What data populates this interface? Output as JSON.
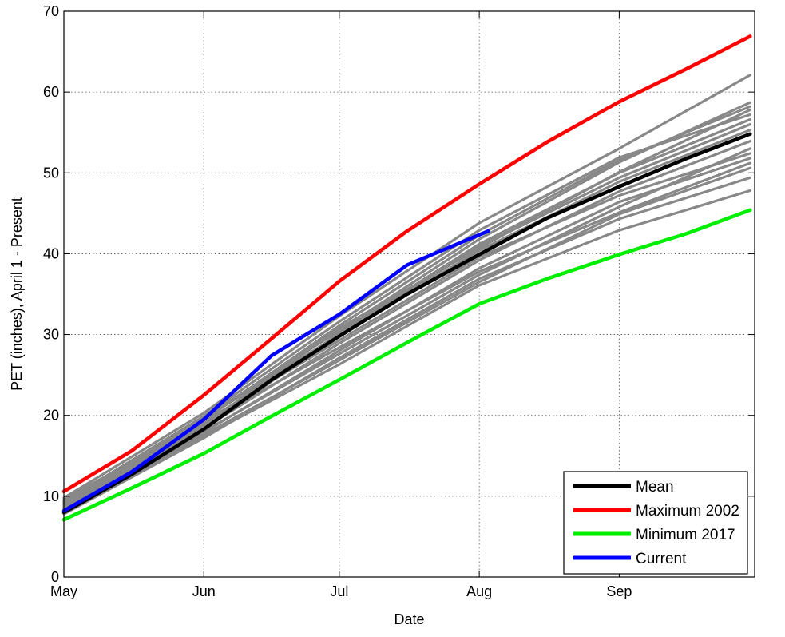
{
  "chart_data": {
    "type": "line",
    "title": "",
    "xlabel": "Date",
    "ylabel": "PET (inches), April 1 - Present",
    "xlim": [
      "2023-05-01",
      "2023-10-01"
    ],
    "ylim": [
      0,
      70
    ],
    "grid": true,
    "legend_position": "bottom-right",
    "x_ticks": [
      {
        "date": "2023-05-01",
        "label": "May"
      },
      {
        "date": "2023-06-01",
        "label": "Jun"
      },
      {
        "date": "2023-07-01",
        "label": "Jul"
      },
      {
        "date": "2023-08-01",
        "label": "Aug"
      },
      {
        "date": "2023-09-01",
        "label": "Sep"
      }
    ],
    "y_ticks": [
      0,
      10,
      20,
      30,
      40,
      50,
      60,
      70
    ],
    "series": [
      {
        "name": "Mean",
        "color": "#000000",
        "x": [
          "2023-05-01",
          "2023-05-16",
          "2023-06-01",
          "2023-06-16",
          "2023-07-01",
          "2023-07-16",
          "2023-08-01",
          "2023-08-16",
          "2023-09-01",
          "2023-09-16",
          "2023-09-30"
        ],
        "y": [
          8.0,
          12.7,
          18.3,
          24.4,
          29.8,
          35.0,
          39.9,
          44.4,
          48.3,
          51.8,
          54.8
        ]
      },
      {
        "name": "Maximum 2002",
        "color": "#ff0000",
        "x": [
          "2023-05-01",
          "2023-05-16",
          "2023-06-01",
          "2023-06-16",
          "2023-07-01",
          "2023-07-16",
          "2023-08-01",
          "2023-08-16",
          "2023-09-01",
          "2023-09-16",
          "2023-09-30"
        ],
        "y": [
          10.6,
          15.6,
          22.5,
          29.5,
          36.6,
          42.8,
          48.6,
          53.8,
          58.8,
          62.9,
          66.9
        ]
      },
      {
        "name": "Minimum 2017",
        "color": "#00ee00",
        "x": [
          "2023-05-01",
          "2023-05-16",
          "2023-06-01",
          "2023-06-16",
          "2023-07-01",
          "2023-07-16",
          "2023-08-01",
          "2023-08-16",
          "2023-09-01",
          "2023-09-16",
          "2023-09-30"
        ],
        "y": [
          7.1,
          11.0,
          15.3,
          19.9,
          24.4,
          29.0,
          33.8,
          36.9,
          39.9,
          42.5,
          45.4
        ]
      },
      {
        "name": "Current",
        "color": "#0000ff",
        "x": [
          "2023-05-01",
          "2023-05-16",
          "2023-06-01",
          "2023-06-16",
          "2023-07-01",
          "2023-07-16",
          "2023-08-03"
        ],
        "y": [
          8.2,
          13.0,
          19.5,
          27.4,
          32.5,
          38.6,
          42.8
        ]
      }
    ],
    "background_series_color": "#888888",
    "background_series": [
      {
        "x": [
          "2023-05-01",
          "2023-06-01",
          "2023-07-01",
          "2023-08-01",
          "2023-09-01",
          "2023-09-30"
        ],
        "y": [
          8.5,
          18.8,
          30.8,
          40.7,
          50.1,
          57.8
        ]
      },
      {
        "x": [
          "2023-05-01",
          "2023-06-01",
          "2023-07-01",
          "2023-08-01",
          "2023-09-01",
          "2023-09-30"
        ],
        "y": [
          8.3,
          18.2,
          30.2,
          41.2,
          50.0,
          56.6
        ]
      },
      {
        "x": [
          "2023-05-01",
          "2023-06-01",
          "2023-07-01",
          "2023-08-01",
          "2023-09-01",
          "2023-09-30"
        ],
        "y": [
          9.8,
          20.3,
          32.3,
          43.8,
          53.0,
          62.1
        ]
      },
      {
        "x": [
          "2023-05-01",
          "2023-06-01",
          "2023-07-01",
          "2023-08-01",
          "2023-09-01",
          "2023-09-30"
        ],
        "y": [
          9.1,
          19.0,
          28.4,
          37.8,
          45.1,
          51.2
        ]
      },
      {
        "x": [
          "2023-05-01",
          "2023-06-01",
          "2023-07-01",
          "2023-08-01",
          "2023-09-01",
          "2023-09-30"
        ],
        "y": [
          7.8,
          17.2,
          27.1,
          36.9,
          44.3,
          49.4
        ]
      },
      {
        "x": [
          "2023-05-01",
          "2023-06-01",
          "2023-07-01",
          "2023-08-01",
          "2023-09-01",
          "2023-09-30"
        ],
        "y": [
          8.1,
          17.4,
          26.3,
          36.1,
          42.9,
          47.8
        ]
      },
      {
        "x": [
          "2023-05-01",
          "2023-06-01",
          "2023-07-01",
          "2023-08-01",
          "2023-09-01",
          "2023-09-30"
        ],
        "y": [
          9.4,
          19.7,
          30.5,
          41.8,
          51.3,
          58.7
        ]
      },
      {
        "x": [
          "2023-05-01",
          "2023-06-01",
          "2023-07-01",
          "2023-08-01",
          "2023-09-01",
          "2023-09-30"
        ],
        "y": [
          8.9,
          18.9,
          29.9,
          40.4,
          48.9,
          55.3
        ]
      },
      {
        "x": [
          "2023-05-01",
          "2023-06-01",
          "2023-07-01",
          "2023-08-01",
          "2023-09-01",
          "2023-09-30"
        ],
        "y": [
          8.6,
          18.4,
          28.9,
          39.2,
          47.7,
          53.9
        ]
      },
      {
        "x": [
          "2023-05-01",
          "2023-06-01",
          "2023-07-01",
          "2023-08-01",
          "2023-09-01",
          "2023-09-30"
        ],
        "y": [
          9.6,
          19.2,
          29.3,
          39.6,
          47.2,
          52.4
        ]
      },
      {
        "x": [
          "2023-05-01",
          "2023-06-01",
          "2023-07-01",
          "2023-08-01",
          "2023-09-01",
          "2023-09-30"
        ],
        "y": [
          8.2,
          17.9,
          28.0,
          38.2,
          46.4,
          51.8
        ]
      },
      {
        "x": [
          "2023-05-01",
          "2023-06-01",
          "2023-07-01",
          "2023-08-01",
          "2023-09-01",
          "2023-09-30"
        ],
        "y": [
          9.0,
          19.4,
          31.1,
          42.3,
          51.6,
          58.2
        ]
      },
      {
        "x": [
          "2023-05-01",
          "2023-06-01",
          "2023-07-01",
          "2023-08-01",
          "2023-09-01",
          "2023-09-30"
        ],
        "y": [
          8.7,
          18.0,
          27.6,
          37.4,
          45.8,
          53.0
        ]
      },
      {
        "x": [
          "2023-05-01",
          "2023-06-01",
          "2023-07-01",
          "2023-08-01",
          "2023-09-01",
          "2023-09-30"
        ],
        "y": [
          9.3,
          19.9,
          31.6,
          42.9,
          51.9,
          57.2
        ]
      },
      {
        "x": [
          "2023-05-01",
          "2023-06-01",
          "2023-07-01",
          "2023-08-01",
          "2023-09-01",
          "2023-09-30"
        ],
        "y": [
          8.4,
          17.6,
          26.8,
          36.5,
          44.9,
          50.6
        ]
      },
      {
        "x": [
          "2023-05-01",
          "2023-06-01",
          "2023-07-01",
          "2023-08-01",
          "2023-09-01",
          "2023-09-30"
        ],
        "y": [
          9.2,
          19.6,
          30.0,
          40.9,
          49.4,
          56.0
        ]
      }
    ]
  }
}
